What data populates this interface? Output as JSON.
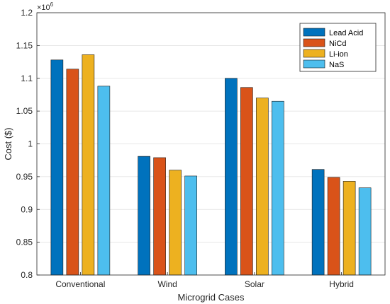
{
  "chart_data": {
    "type": "bar",
    "categories": [
      "Conventional",
      "Wind",
      "Solar",
      "Hybrid"
    ],
    "series": [
      {
        "name": "Lead Acid",
        "color": "#0072bd",
        "values": [
          1128000,
          981000,
          1100000,
          961000
        ]
      },
      {
        "name": "NiCd",
        "color": "#d95319",
        "values": [
          1114000,
          979000,
          1086000,
          949000
        ]
      },
      {
        "name": "Li-ion",
        "color": "#edb120",
        "values": [
          1136000,
          960000,
          1070000,
          943000
        ]
      },
      {
        "name": "NaS",
        "color": "#4dbeee",
        "values": [
          1088000,
          951000,
          1065000,
          933000
        ]
      }
    ],
    "xlabel": "Microgrid Cases",
    "ylabel": "Cost ($)",
    "ylim": [
      800000,
      1200000
    ],
    "yticks": [
      0.8,
      0.85,
      0.9,
      0.95,
      1,
      1.05,
      1.1,
      1.15,
      1.2
    ],
    "ytick_labels": [
      "0.8",
      "0.85",
      "0.9",
      "0.95",
      "1",
      "1.05",
      "1.1",
      "1.15",
      "1.2"
    ],
    "y_exponent_base": "×10",
    "y_exponent_power": "6",
    "grid": true,
    "legend_position": "top-right"
  }
}
